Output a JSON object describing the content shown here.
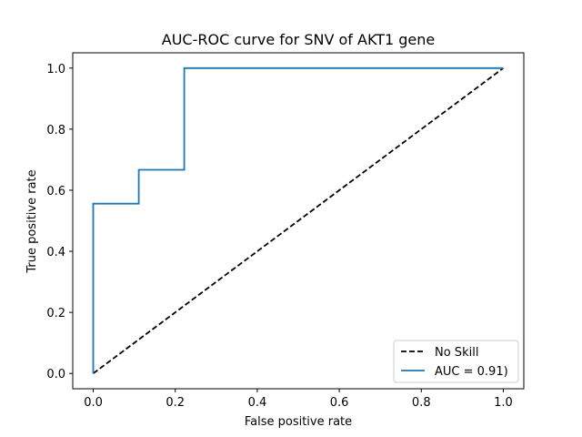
{
  "chart_data": {
    "type": "line",
    "title": "AUC-ROC curve for SNV of AKT1 gene",
    "xlabel": "False positive rate",
    "ylabel": "True positive rate",
    "xlim": [
      -0.05,
      1.05
    ],
    "ylim": [
      -0.05,
      1.05
    ],
    "xticks": [
      0.0,
      0.2,
      0.4,
      0.6,
      0.8,
      1.0
    ],
    "xtick_labels": [
      "0.0",
      "0.2",
      "0.4",
      "0.6",
      "0.8",
      "1.0"
    ],
    "yticks": [
      0.0,
      0.2,
      0.4,
      0.6,
      0.8,
      1.0
    ],
    "ytick_labels": [
      "0.0",
      "0.2",
      "0.4",
      "0.6",
      "0.8",
      "1.0"
    ],
    "grid": false,
    "legend_position": "lower-right",
    "series": [
      {
        "name": "No Skill",
        "style": "dashed",
        "color": "#000000",
        "x": [
          0,
          1
        ],
        "y": [
          0,
          1
        ]
      },
      {
        "name": "AUC = 0.91)",
        "style": "solid",
        "color": "#1f77b4",
        "x": [
          0,
          0,
          0.111,
          0.111,
          0.222,
          0.222,
          1
        ],
        "y": [
          0,
          0.556,
          0.556,
          0.667,
          0.667,
          1.0,
          1.0
        ]
      }
    ]
  }
}
